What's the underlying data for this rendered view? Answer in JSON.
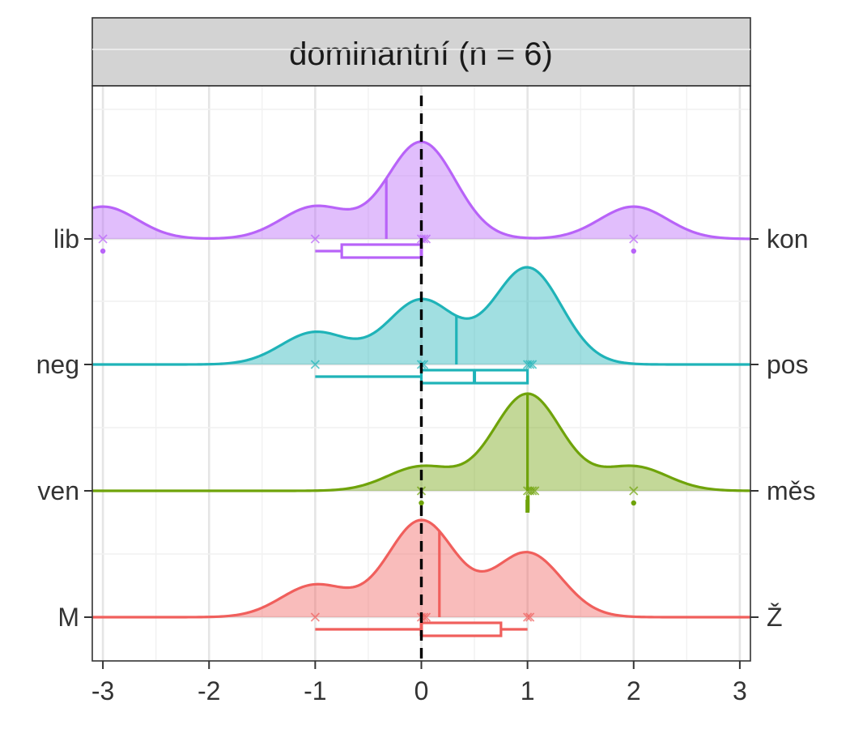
{
  "chart_data": {
    "type": "density-raincloud",
    "title": "dominantní (n = 6)",
    "xlabel": "",
    "ylabel": "",
    "xlim": [
      -3,
      3
    ],
    "x_ticks": [
      -3,
      -2,
      -1,
      0,
      1,
      2,
      3
    ],
    "x_tick_labels": [
      "-3",
      "-2",
      "-1",
      "0",
      "1",
      "2",
      "3"
    ],
    "reference_line": {
      "x": 0,
      "style": "dashed"
    },
    "grid": true,
    "series": [
      {
        "left_label": "lib",
        "right_label": "kon",
        "color": "#B863F8",
        "points": [
          -3,
          -1,
          0,
          0,
          0,
          2
        ],
        "mean": -0.33,
        "box": {
          "whisker_low": -1,
          "q1": -0.75,
          "median": 0,
          "q3": 0,
          "whisker_high": 0
        },
        "outliers": [
          -3,
          2
        ]
      },
      {
        "left_label": "neg",
        "right_label": "pos",
        "color": "#1FB3B8",
        "points": [
          -1,
          0,
          0,
          1,
          1,
          1
        ],
        "mean": 0.33,
        "box": {
          "whisker_low": -1,
          "q1": 0,
          "median": 0.5,
          "q3": 1,
          "whisker_high": 1
        },
        "outliers": []
      },
      {
        "left_label": "ven",
        "right_label": "měs",
        "color": "#6FA30A",
        "points": [
          0,
          1,
          1,
          1,
          1,
          2
        ],
        "mean": 1,
        "box": {
          "whisker_low": 1,
          "q1": 1,
          "median": 1,
          "q3": 1,
          "whisker_high": 1
        },
        "outliers": [
          0,
          2
        ]
      },
      {
        "left_label": "M",
        "right_label": "Ž",
        "color": "#F05F5C",
        "points": [
          -1,
          0,
          0,
          0,
          1,
          1
        ],
        "mean": 0.17,
        "box": {
          "whisker_low": -1,
          "q1": 0,
          "median": 0,
          "q3": 0.75,
          "whisker_high": 1
        },
        "outliers": []
      }
    ]
  }
}
